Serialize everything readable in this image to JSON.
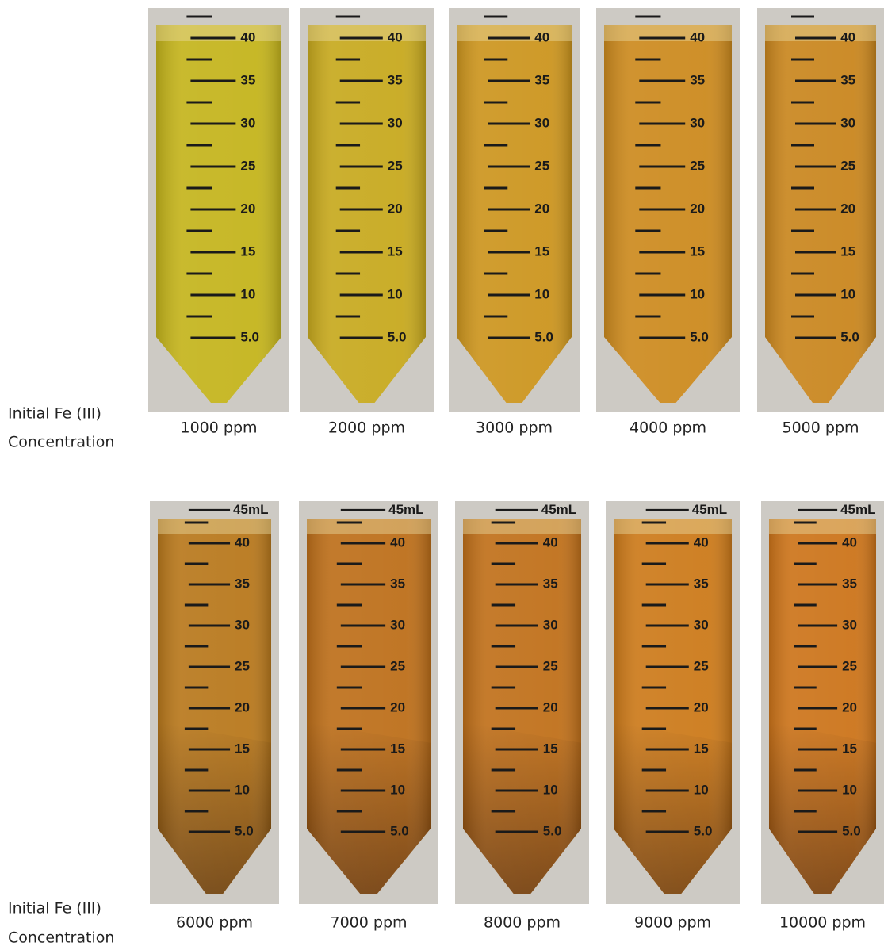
{
  "rows": [
    {
      "label_lines": [
        "Initial Fe (III)",
        "Concentration"
      ],
      "tubes": [
        {
          "label": "1000 ppm",
          "color": "#c4b41c"
        },
        {
          "label": "2000 ppm",
          "color": "#c7a91e"
        },
        {
          "label": "3000 ppm",
          "color": "#cc951e"
        },
        {
          "label": "4000 ppm",
          "color": "#cc8a1e"
        },
        {
          "label": "5000 ppm",
          "color": "#c9861e"
        }
      ]
    },
    {
      "label_lines": [
        "Initial Fe (III)",
        "Concentration"
      ],
      "top_mark": "45mL",
      "tubes": [
        {
          "label": "6000 ppm",
          "color": "#b8781c"
        },
        {
          "label": "7000 ppm",
          "color": "#bd6f1a"
        },
        {
          "label": "8000 ppm",
          "color": "#c0701a"
        },
        {
          "label": "9000 ppm",
          "color": "#cc7a1a"
        },
        {
          "label": "10000 ppm",
          "color": "#cc741a"
        }
      ]
    }
  ],
  "graduations": [
    "40",
    "35",
    "30",
    "25",
    "20",
    "15",
    "10",
    "5.0"
  ]
}
